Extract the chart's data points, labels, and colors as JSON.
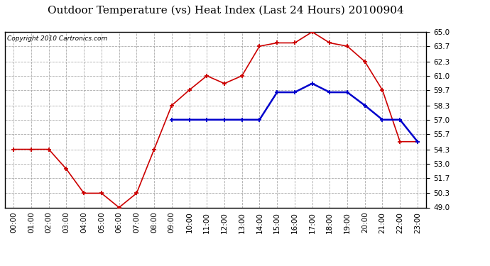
{
  "title": "Outdoor Temperature (vs) Heat Index (Last 24 Hours) 20100904",
  "copyright": "Copyright 2010 Cartronics.com",
  "hours": [
    "00:00",
    "01:00",
    "02:00",
    "03:00",
    "04:00",
    "05:00",
    "06:00",
    "07:00",
    "08:00",
    "09:00",
    "10:00",
    "11:00",
    "12:00",
    "13:00",
    "14:00",
    "15:00",
    "16:00",
    "17:00",
    "18:00",
    "19:00",
    "20:00",
    "21:00",
    "22:00",
    "23:00"
  ],
  "temp": [
    54.3,
    54.3,
    54.3,
    52.5,
    50.3,
    50.3,
    49.0,
    50.3,
    54.3,
    58.3,
    59.7,
    61.0,
    60.3,
    61.0,
    63.7,
    64.0,
    64.0,
    65.0,
    64.0,
    63.7,
    62.3,
    59.7,
    55.0,
    55.0
  ],
  "heat_index": [
    null,
    null,
    null,
    null,
    null,
    null,
    null,
    null,
    null,
    57.0,
    57.0,
    57.0,
    57.0,
    57.0,
    57.0,
    59.5,
    59.5,
    60.3,
    59.5,
    59.5,
    58.3,
    57.0,
    57.0,
    55.0
  ],
  "temp_color": "#cc0000",
  "heat_color": "#0000cc",
  "ylim": [
    49.0,
    65.0
  ],
  "yticks": [
    49.0,
    50.3,
    51.7,
    53.0,
    54.3,
    55.7,
    57.0,
    58.3,
    59.7,
    61.0,
    62.3,
    63.7,
    65.0
  ],
  "bg_color": "#ffffff",
  "plot_bg": "#ffffff",
  "grid_color": "#aaaaaa",
  "title_fontsize": 11,
  "copyright_fontsize": 6.5,
  "tick_fontsize": 7.5
}
